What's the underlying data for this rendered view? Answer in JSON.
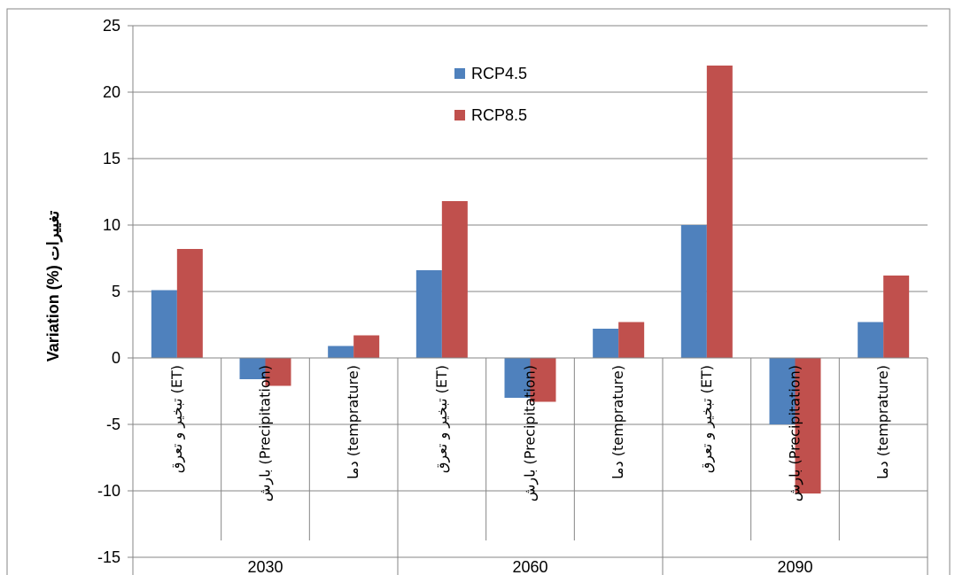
{
  "chart_data": {
    "type": "bar",
    "title": "",
    "ylabel": "Variation (%) تغییرات",
    "xlabel": "",
    "ylim": [
      -15,
      25
    ],
    "y_ticks": [
      -15,
      -10,
      -5,
      0,
      5,
      10,
      15,
      20,
      25
    ],
    "grid": true,
    "legend_position": "top-center",
    "groups": [
      "2030",
      "2060",
      "2090"
    ],
    "categories": [
      "تبخیر و تعرق (ET)",
      "بارش (Precipitation)",
      "دما (temprature)",
      "تبخیر و تعرق (ET)",
      "بارش (Precipitation)",
      "دما (temprature)",
      "تبخیر و تعرق (ET)",
      "بارش (Precipitation)",
      "دما (temprature)"
    ],
    "series": [
      {
        "name": "RCP4.5",
        "color": "#4F81BD",
        "values": [
          5.1,
          -1.6,
          0.9,
          6.6,
          -3.0,
          2.2,
          10.0,
          -5.0,
          2.7
        ]
      },
      {
        "name": "RCP8.5",
        "color": "#C0504D",
        "values": [
          8.2,
          -2.1,
          1.7,
          11.8,
          -3.3,
          2.7,
          22.0,
          -10.2,
          6.2
        ]
      }
    ]
  }
}
